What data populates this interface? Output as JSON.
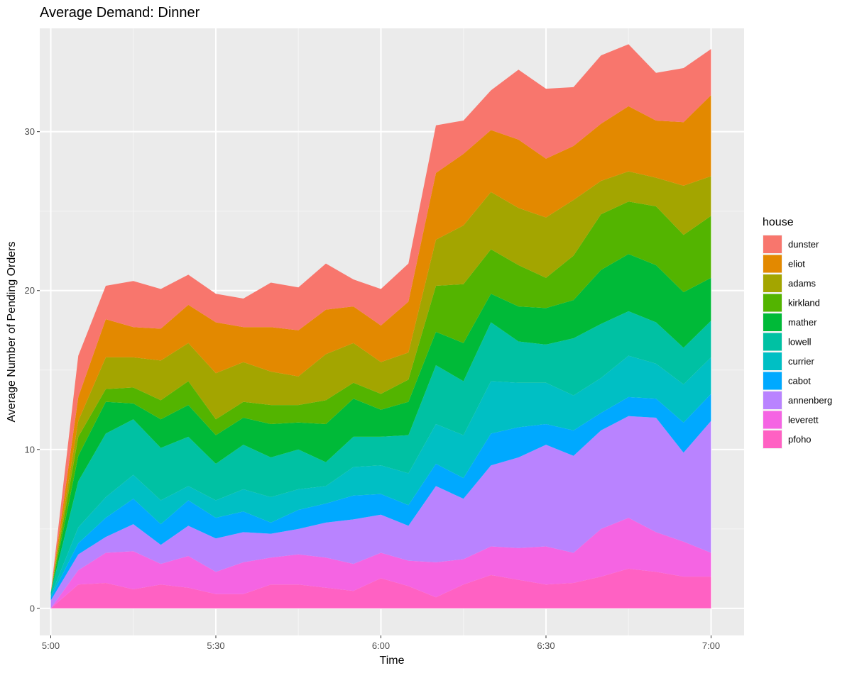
{
  "chart_data": {
    "type": "area",
    "stacked": true,
    "title": "Average Demand: Dinner",
    "xlabel": "Time",
    "ylabel": "Average Number of Pending Orders",
    "x": [
      "5:00",
      "5:05",
      "5:10",
      "5:15",
      "5:20",
      "5:25",
      "5:30",
      "5:35",
      "5:40",
      "5:45",
      "5:50",
      "5:55",
      "6:00",
      "6:05",
      "6:10",
      "6:15",
      "6:20",
      "6:25",
      "6:30",
      "6:35",
      "6:40",
      "6:45",
      "6:50",
      "6:55",
      "7:00"
    ],
    "x_ticks": [
      "5:00",
      "5:30",
      "6:00",
      "6:30",
      "7:00"
    ],
    "xlim": [
      "4:58",
      "7:06"
    ],
    "y_ticks": [
      0,
      10,
      20,
      30
    ],
    "ylim": [
      -1.7,
      36.5
    ],
    "grid": true,
    "legend": {
      "title": "house",
      "position": "right"
    },
    "series": [
      {
        "name": "pfoho",
        "color": "#FF61C3",
        "values": [
          0,
          1.5,
          1.6,
          1.2,
          1.5,
          1.3,
          0.9,
          0.9,
          1.5,
          1.5,
          1.3,
          1.1,
          1.9,
          1.4,
          0.7,
          1.5,
          2.1,
          1.8,
          1.5,
          1.6,
          2.0,
          2.5,
          2.3,
          2.0,
          2.0
        ]
      },
      {
        "name": "leverett",
        "color": "#F564E3",
        "values": [
          0,
          0.9,
          1.9,
          2.4,
          1.3,
          2.0,
          1.4,
          2.0,
          1.7,
          1.9,
          1.9,
          1.7,
          1.6,
          1.6,
          2.2,
          1.6,
          1.8,
          2.0,
          2.4,
          1.9,
          3.0,
          3.2,
          2.5,
          2.2,
          1.5
        ]
      },
      {
        "name": "annenberg",
        "color": "#B983FF",
        "values": [
          0.5,
          1.0,
          1.0,
          1.7,
          1.2,
          1.9,
          2.1,
          1.9,
          1.5,
          1.6,
          2.2,
          2.8,
          2.4,
          2.2,
          4.8,
          3.8,
          5.1,
          5.7,
          6.4,
          6.1,
          6.2,
          6.4,
          7.2,
          5.6,
          8.3
        ]
      },
      {
        "name": "cabot",
        "color": "#00A9FF",
        "values": [
          0.2,
          0.7,
          1.2,
          1.6,
          1.3,
          1.6,
          1.3,
          1.3,
          0.7,
          1.2,
          1.2,
          1.5,
          1.3,
          1.3,
          1.4,
          1.3,
          2.0,
          1.9,
          1.3,
          1.6,
          1.1,
          1.2,
          1.2,
          1.9,
          1.7
        ]
      },
      {
        "name": "currier",
        "color": "#00BFC4",
        "values": [
          0.1,
          1.0,
          1.3,
          1.5,
          1.5,
          0.9,
          1.1,
          1.4,
          1.6,
          1.3,
          1.1,
          1.8,
          1.8,
          2.0,
          2.5,
          2.7,
          3.3,
          2.8,
          2.6,
          2.2,
          2.2,
          2.6,
          2.2,
          2.4,
          2.3
        ]
      },
      {
        "name": "lowell",
        "color": "#00C1A3",
        "values": [
          0.2,
          2.9,
          4.0,
          3.5,
          3.3,
          3.1,
          2.3,
          2.8,
          2.5,
          2.5,
          1.5,
          1.9,
          1.8,
          2.4,
          3.7,
          3.4,
          3.7,
          2.6,
          2.4,
          3.6,
          3.4,
          2.8,
          2.6,
          2.3,
          2.3
        ]
      },
      {
        "name": "mather",
        "color": "#00BA38",
        "values": [
          0,
          1.6,
          2.0,
          1.0,
          1.8,
          2.0,
          1.8,
          1.7,
          2.1,
          1.7,
          2.4,
          2.4,
          1.7,
          2.1,
          2.1,
          2.4,
          1.8,
          2.2,
          2.3,
          2.4,
          3.4,
          3.6,
          3.6,
          3.5,
          2.7
        ]
      },
      {
        "name": "kirkland",
        "color": "#53B400",
        "values": [
          0,
          1.2,
          0.8,
          1.0,
          1.2,
          1.5,
          1.0,
          1.0,
          1.2,
          1.1,
          1.5,
          1.0,
          1.0,
          1.4,
          2.9,
          3.7,
          2.8,
          2.6,
          1.9,
          2.8,
          3.5,
          3.3,
          3.7,
          3.6,
          3.9
        ]
      },
      {
        "name": "adams",
        "color": "#A3A500",
        "values": [
          0,
          1.0,
          2.0,
          1.9,
          2.5,
          2.4,
          2.9,
          2.5,
          2.1,
          1.8,
          2.9,
          2.5,
          2.0,
          1.7,
          2.9,
          3.7,
          3.6,
          3.6,
          3.8,
          3.5,
          2.1,
          1.9,
          1.8,
          3.1,
          2.5
        ]
      },
      {
        "name": "eliot",
        "color": "#E38900",
        "values": [
          0,
          1.5,
          2.4,
          1.9,
          2.0,
          2.4,
          3.2,
          2.2,
          2.8,
          2.9,
          2.8,
          2.3,
          2.3,
          3.2,
          4.2,
          4.5,
          3.9,
          4.3,
          3.7,
          3.4,
          3.6,
          4.1,
          3.6,
          4.0,
          5.1
        ]
      },
      {
        "name": "dunster",
        "color": "#F8766D",
        "values": [
          0,
          2.6,
          2.1,
          2.9,
          2.5,
          1.9,
          1.8,
          1.8,
          2.8,
          2.7,
          2.9,
          1.7,
          2.3,
          2.4,
          3.0,
          2.1,
          2.5,
          4.4,
          4.4,
          3.7,
          4.3,
          3.9,
          3.0,
          3.4,
          2.9
        ]
      }
    ]
  }
}
